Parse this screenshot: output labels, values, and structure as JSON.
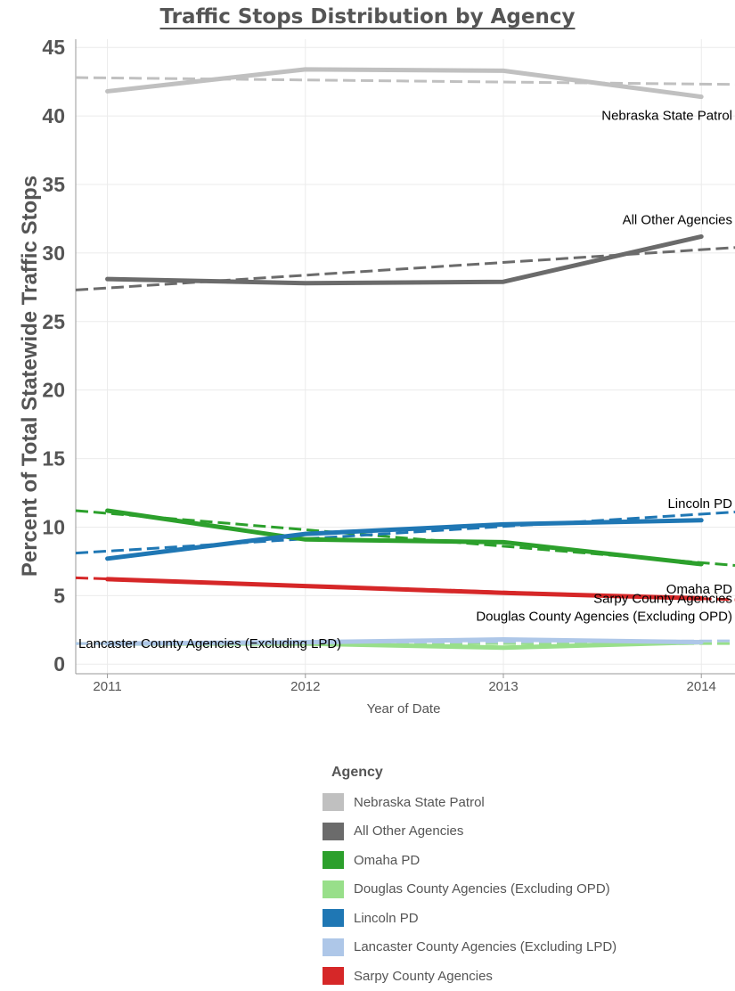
{
  "chart_data": {
    "type": "line",
    "title": "Traffic Stops Distribution by Agency",
    "xlabel": "Year of Date",
    "ylabel": "Percent of Total Statewide Traffic Stops",
    "x": [
      2011,
      2012,
      2013,
      2014
    ],
    "x_ticks": [
      "2011",
      "2012",
      "2013",
      "2014"
    ],
    "y_ticks": [
      "0",
      "5",
      "10",
      "15",
      "20",
      "25",
      "30",
      "35",
      "40",
      "45"
    ],
    "xlim": [
      2010.84,
      2014.17
    ],
    "ylim": [
      -0.7,
      45.6
    ],
    "grid": true,
    "trend_lines": "dashed",
    "legend_title": "Agency",
    "legend_position": "bottom",
    "series": [
      {
        "name": "Nebraska State Patrol",
        "color": "#c0c0c0",
        "values": [
          41.8,
          43.4,
          43.3,
          41.4
        ],
        "trend": [
          42.8,
          42.3
        ],
        "label_pos": "below-end"
      },
      {
        "name": "All Other Agencies",
        "color": "#6b6b6b",
        "values": [
          28.1,
          27.8,
          27.9,
          31.2
        ],
        "trend": [
          27.3,
          30.4
        ],
        "label_pos": "above-end"
      },
      {
        "name": "Omaha PD",
        "color": "#2ca02c",
        "values": [
          11.2,
          9.1,
          8.9,
          7.3
        ],
        "trend": [
          11.2,
          7.2
        ],
        "label_pos": "below-end"
      },
      {
        "name": "Douglas County Agencies (Excluding OPD)",
        "color": "#98df8a",
        "values": [
          1.5,
          1.5,
          1.2,
          1.6
        ],
        "trend": [
          1.5,
          1.5
        ],
        "label_pos": "above-end"
      },
      {
        "name": "Lincoln PD",
        "color": "#1f77b4",
        "values": [
          7.7,
          9.5,
          10.2,
          10.5
        ],
        "trend": [
          8.1,
          11.1
        ],
        "label_pos": "above-end"
      },
      {
        "name": "Lancaster County Agencies (Excluding LPD)",
        "color": "#aec7e8",
        "values": [
          1.5,
          1.6,
          1.8,
          1.6
        ],
        "trend": [
          1.5,
          1.7
        ],
        "label_pos": "start"
      },
      {
        "name": "Sarpy County Agencies",
        "color": "#d62728",
        "values": [
          6.2,
          5.7,
          5.2,
          4.8
        ],
        "trend": [
          6.3,
          4.7
        ],
        "label_pos": "below-end"
      }
    ]
  }
}
